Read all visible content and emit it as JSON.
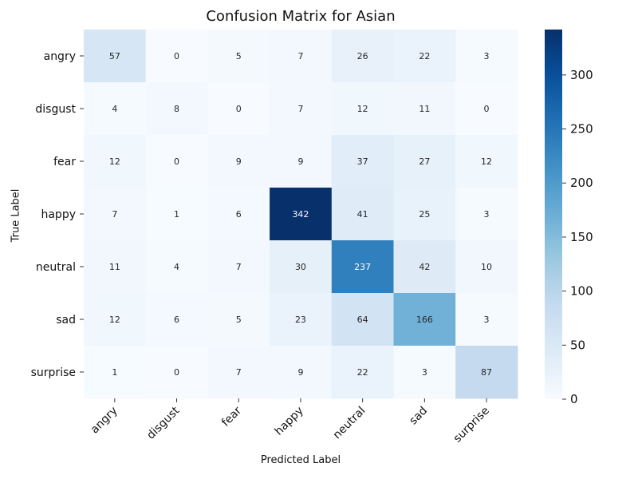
{
  "chart_data": {
    "type": "heatmap",
    "title": "Confusion Matrix for Asian",
    "xlabel": "Predicted Label",
    "ylabel": "True Label",
    "x_categories": [
      "angry",
      "disgust",
      "fear",
      "happy",
      "neutral",
      "sad",
      "surprise"
    ],
    "y_categories": [
      "angry",
      "disgust",
      "fear",
      "happy",
      "neutral",
      "sad",
      "surprise"
    ],
    "values": [
      [
        57,
        0,
        5,
        7,
        26,
        22,
        3
      ],
      [
        4,
        8,
        0,
        7,
        12,
        11,
        0
      ],
      [
        12,
        0,
        9,
        9,
        37,
        27,
        12
      ],
      [
        7,
        1,
        6,
        342,
        41,
        25,
        3
      ],
      [
        11,
        4,
        7,
        30,
        237,
        42,
        10
      ],
      [
        12,
        6,
        5,
        23,
        64,
        166,
        3
      ],
      [
        1,
        0,
        7,
        9,
        22,
        3,
        87
      ]
    ],
    "colormap": "Blues",
    "vmin": 0,
    "vmax": 342,
    "colorbar_ticks": [
      0,
      50,
      100,
      150,
      200,
      250,
      300
    ],
    "colorbar_position": "right",
    "grid": false
  }
}
